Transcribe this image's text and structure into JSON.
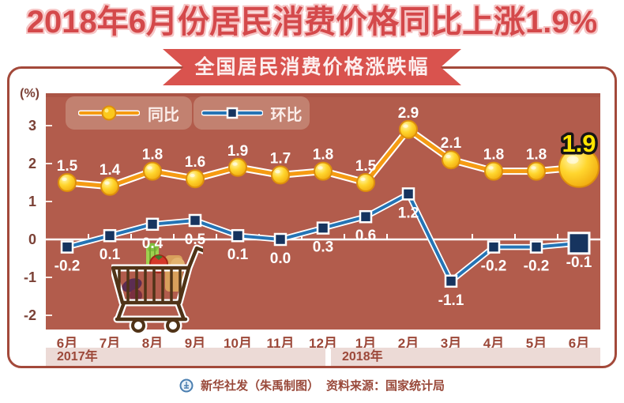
{
  "title": "2018年6月份居民消费价格同比上涨1.9%",
  "banner": "全国居民消费价格涨跌幅",
  "axis_unit": "(%)",
  "footer": {
    "credit": "新华社发（朱禹制图）",
    "source": "资料来源：国家统计局"
  },
  "colors": {
    "title_red": "#d4494b",
    "title_outline": "#f6c5c5",
    "ribbon_red": "#d9534e",
    "frame_border": "#a3493a",
    "panel_bg": "#b25c4c",
    "legend_pill_bg": "#c28170",
    "yoy_line": "#f59b13",
    "yoy_marker_fill": "#fbc81d",
    "mom_line": "#2474b5",
    "mom_marker_fill": "#16345f",
    "zero_line": "#ffffff",
    "axis_text": "#7b4136",
    "month_text": "#9c4839",
    "year_band_bg": "#ecdad6",
    "footer_text": "#99493a",
    "highlight_text": "#ffe500"
  },
  "chart_data": {
    "type": "line",
    "categories": [
      "6月",
      "7月",
      "8月",
      "9月",
      "10月",
      "11月",
      "12月",
      "1月",
      "2月",
      "3月",
      "4月",
      "5月",
      "6月"
    ],
    "x_groups": [
      {
        "label": "2017年",
        "months": 7
      },
      {
        "label": "2018年",
        "months": 6
      }
    ],
    "series": [
      {
        "name": "同比",
        "marker": "circle",
        "color": "#f59b13",
        "values": [
          1.5,
          1.4,
          1.8,
          1.6,
          1.9,
          1.7,
          1.8,
          1.5,
          2.9,
          2.1,
          1.8,
          1.8,
          1.9
        ],
        "label_position": "above"
      },
      {
        "name": "环比",
        "marker": "square",
        "color": "#2474b5",
        "values": [
          -0.2,
          0.1,
          0.4,
          0.5,
          0.1,
          0.0,
          0.3,
          0.6,
          1.2,
          -1.1,
          -0.2,
          -0.2,
          -0.1
        ],
        "label_position": "below"
      }
    ],
    "ylim": [
      -2,
      3
    ],
    "yticks": [
      3,
      2,
      1,
      0,
      -1,
      -2
    ],
    "grid": false,
    "legend_position": "top-left",
    "highlight": {
      "series": "同比",
      "index": 12,
      "label": "1.9"
    }
  }
}
